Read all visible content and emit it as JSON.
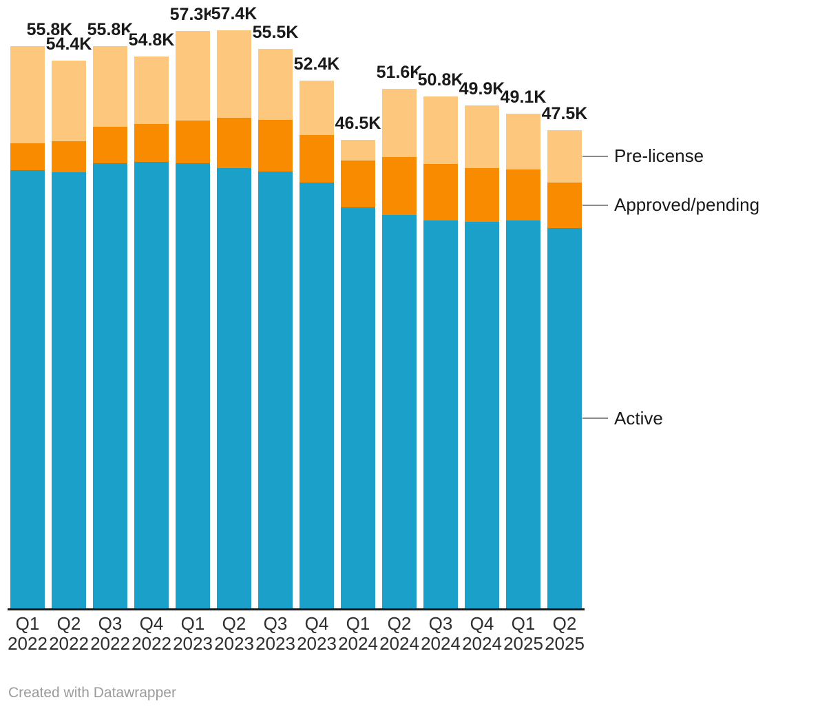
{
  "chart_data": {
    "type": "bar",
    "stacked": true,
    "orientation": "vertical",
    "title": "",
    "xlabel": "",
    "ylabel": "",
    "ylim": [
      0,
      60
    ],
    "grid": false,
    "unit": "K",
    "legend_position": "right-pointer",
    "categories": [
      {
        "quarter": "Q1",
        "year": "2022"
      },
      {
        "quarter": "Q2",
        "year": "2022"
      },
      {
        "quarter": "Q3",
        "year": "2022"
      },
      {
        "quarter": "Q4",
        "year": "2022"
      },
      {
        "quarter": "Q1",
        "year": "2023"
      },
      {
        "quarter": "Q2",
        "year": "2023"
      },
      {
        "quarter": "Q3",
        "year": "2023"
      },
      {
        "quarter": "Q4",
        "year": "2023"
      },
      {
        "quarter": "Q1",
        "year": "2024"
      },
      {
        "quarter": "Q2",
        "year": "2024"
      },
      {
        "quarter": "Q3",
        "year": "2024"
      },
      {
        "quarter": "Q4",
        "year": "2024"
      },
      {
        "quarter": "Q1",
        "year": "2025"
      },
      {
        "quarter": "Q2",
        "year": "2025"
      }
    ],
    "series": [
      {
        "name": "Active",
        "color": "#1BA0C9",
        "values": [
          43.5,
          43.3,
          44.2,
          44.3,
          44.2,
          43.7,
          43.4,
          42.3,
          39.8,
          39.1,
          38.5,
          38.4,
          38.5,
          37.8
        ]
      },
      {
        "name": "Approved/pending",
        "color": "#F88B00",
        "values": [
          2.7,
          3.1,
          3.6,
          3.8,
          4.2,
          5.0,
          5.1,
          4.7,
          4.7,
          5.7,
          5.6,
          5.3,
          5.1,
          4.5
        ]
      },
      {
        "name": "Pre-license",
        "color": "#FDC77D",
        "values": [
          9.6,
          8.0,
          8.0,
          6.7,
          8.9,
          8.7,
          7.0,
          5.4,
          2.0,
          6.8,
          6.7,
          6.2,
          5.5,
          5.2
        ]
      }
    ],
    "totals": [
      "55.8K",
      "54.4K",
      "55.8K",
      "54.8K",
      "57.3K",
      "57.4K",
      "55.5K",
      "52.4K",
      "46.5K",
      "51.6K",
      "50.8K",
      "49.9K",
      "49.1K",
      "47.5K"
    ]
  },
  "footer": {
    "credit": "Created with Datawrapper"
  }
}
